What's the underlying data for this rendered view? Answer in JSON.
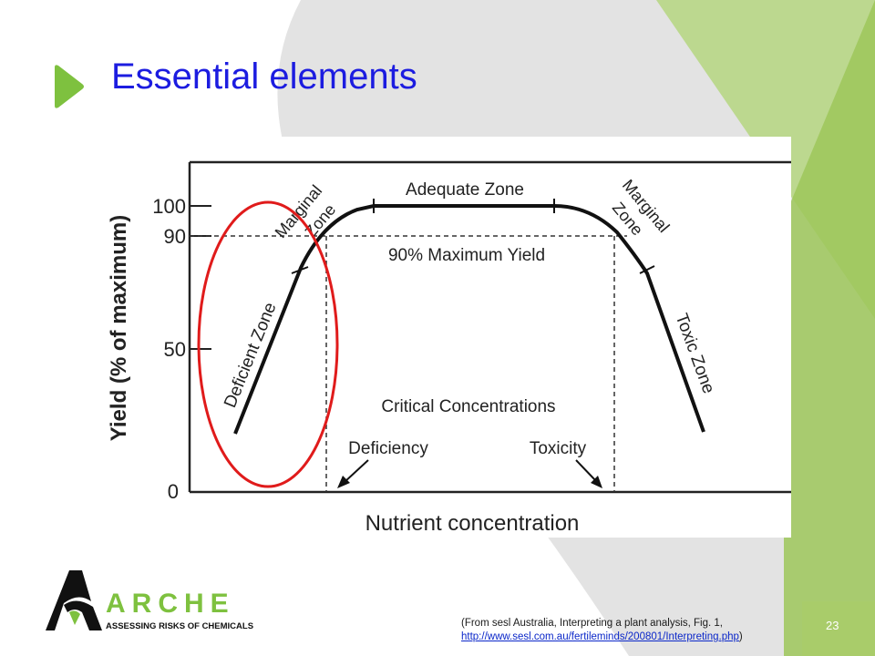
{
  "slide": {
    "title": "Essential elements",
    "page_number": "23"
  },
  "chart": {
    "y_axis_label": "Yield (% of maximum)",
    "x_axis_label": "Nutrient concentration",
    "y_ticks": [
      "100",
      "90",
      "50",
      "0"
    ],
    "zone_labels": {
      "deficient": "Deficient Zone",
      "marginal_left": [
        "Marginal",
        "Zone"
      ],
      "adequate": "Adequate Zone",
      "marginal_right": [
        "Marginal",
        "Zone"
      ],
      "toxic": "Toxic Zone"
    },
    "max_yield_label": "90% Maximum Yield",
    "critical_title": "Critical Concentrations",
    "deficiency_label": "Deficiency",
    "toxicity_label": "Toxicity",
    "highlight_color": "#e01b1b"
  },
  "logo": {
    "brand": "ARCHE",
    "tagline": "ASSESSING RISKS OF CHEMICALS"
  },
  "citation": {
    "text_before": "(From sesl Australia, Interpreting a plant analysis, Fig. 1,",
    "link": "http://www.sesl.com.au/fertileminds/200801/Interpreting.php",
    "text_after": ")"
  },
  "colors": {
    "title_blue": "#1c1ce0",
    "accent_green": "#7ec13f",
    "light_green": "#bcd88f",
    "grey_band": "#e3e3e3"
  }
}
